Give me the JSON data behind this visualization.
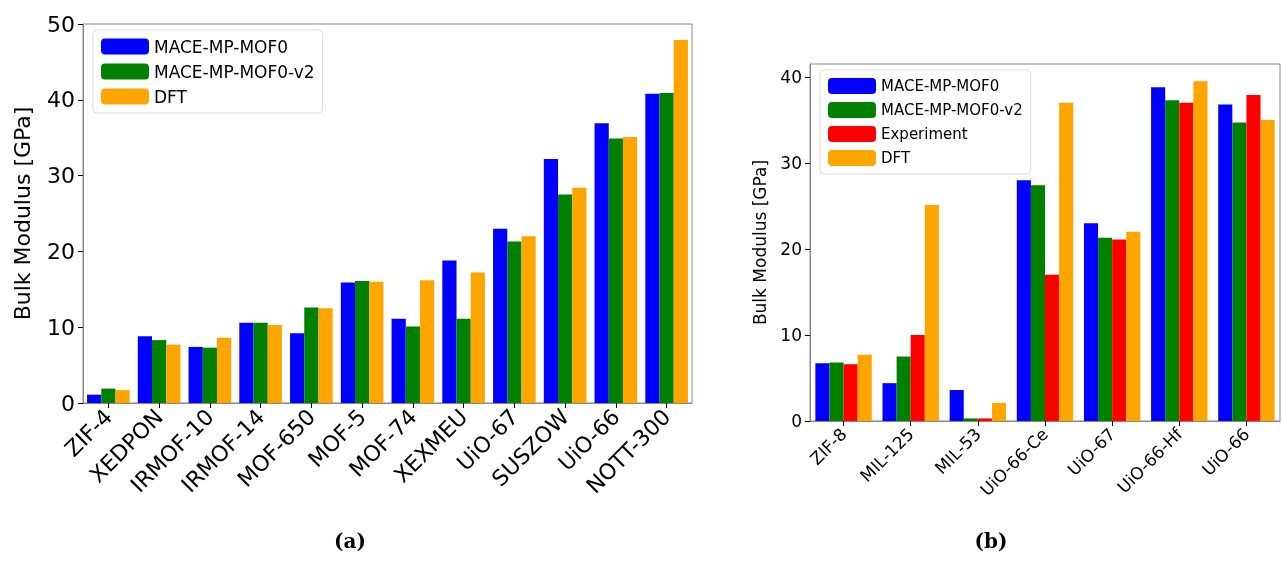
{
  "chart_data": [
    {
      "type": "bar",
      "title": "(a)",
      "ylabel": "Bulk Modulus [GPa]",
      "categories": [
        "ZIF-4",
        "XEDPON",
        "IRMOF-10",
        "IRMOF-14",
        "MOF-650",
        "MOF-5",
        "MOF-74",
        "XEXMEU",
        "UiO-67",
        "SUSZOW",
        "UiO-66",
        "NOTT-300"
      ],
      "series": [
        {
          "name": "MACE-MP-MOF0",
          "color": "#0000ff",
          "values": [
            1.1,
            8.8,
            7.4,
            10.6,
            9.2,
            15.9,
            11.1,
            18.8,
            23.0,
            32.2,
            36.9,
            40.8
          ]
        },
        {
          "name": "MACE-MP-MOF0-v2",
          "color": "#008000",
          "values": [
            1.9,
            8.3,
            7.3,
            10.6,
            12.6,
            16.1,
            10.1,
            11.1,
            21.3,
            27.5,
            34.9,
            40.9
          ]
        },
        {
          "name": "DFT",
          "color": "#ffa500",
          "values": [
            1.7,
            7.7,
            8.6,
            10.3,
            12.5,
            16.0,
            16.2,
            17.2,
            22.0,
            28.4,
            35.1,
            47.9
          ]
        }
      ],
      "ylim": [
        0,
        50
      ],
      "yticks": [
        0,
        10,
        20,
        30,
        40,
        50
      ],
      "grid": false,
      "legend": "top left"
    },
    {
      "type": "bar",
      "title": "(b)",
      "ylabel": "Bulk Modulus [GPa]",
      "categories": [
        "ZIF-8",
        "MIL-125",
        "MIL-53",
        "UiO-66-Ce",
        "UiO-67",
        "UiO-66-Hf",
        "UiO-66"
      ],
      "series": [
        {
          "name": "MACE-MP-MOF0",
          "color": "#0000ff",
          "values": [
            6.7,
            4.4,
            3.6,
            28.0,
            23.0,
            38.8,
            36.8
          ]
        },
        {
          "name": "MACE-MP-MOF0-v2",
          "color": "#008000",
          "values": [
            6.8,
            7.5,
            0.3,
            27.4,
            21.3,
            37.3,
            34.7
          ]
        },
        {
          "name": "Experiment",
          "color": "#ff0000",
          "values": [
            6.6,
            10.0,
            0.3,
            17.0,
            21.1,
            37.0,
            37.9
          ]
        },
        {
          "name": "DFT",
          "color": "#ffa500",
          "values": [
            7.7,
            25.1,
            2.1,
            37.0,
            22.0,
            39.5,
            35.0
          ]
        }
      ],
      "ylim": [
        0,
        41.5
      ],
      "yticks": [
        0,
        10,
        20,
        30,
        40
      ],
      "grid": false,
      "legend": "top left"
    }
  ]
}
